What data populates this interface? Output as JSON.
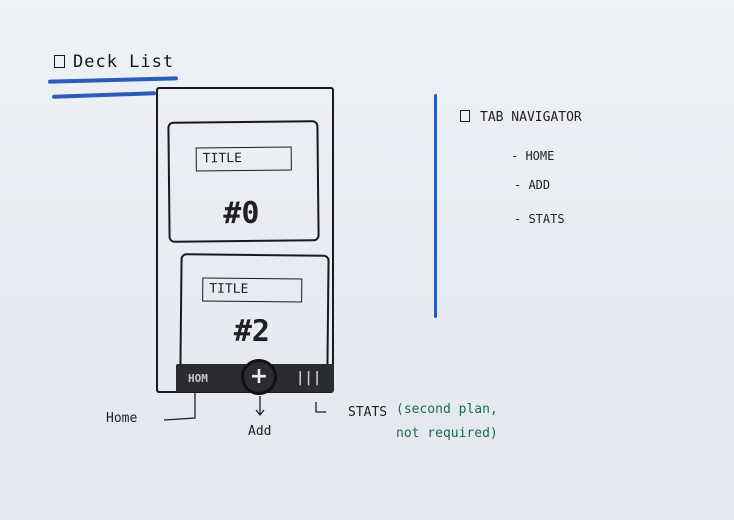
{
  "heading": {
    "text": "Deck List"
  },
  "phone": {
    "cards": [
      {
        "title": "TITLE",
        "number": "#0"
      },
      {
        "title": "TITLE",
        "number": "#2"
      }
    ],
    "tabbar": {
      "home_label": "HOM",
      "add_label": "+",
      "stats_label": "|||"
    }
  },
  "annotations": {
    "home": "Home",
    "add": "Add",
    "stats": "STATS",
    "note": "(second plan, not required)"
  },
  "tab_navigator": {
    "title": "TAB NAVIGATOR",
    "items": [
      "- HOME",
      "- ADD",
      "- STATS"
    ]
  },
  "colors": {
    "ink": "#1f1f24",
    "blue_marker": "#2a5db8",
    "green_ink": "#1c6b4c"
  }
}
